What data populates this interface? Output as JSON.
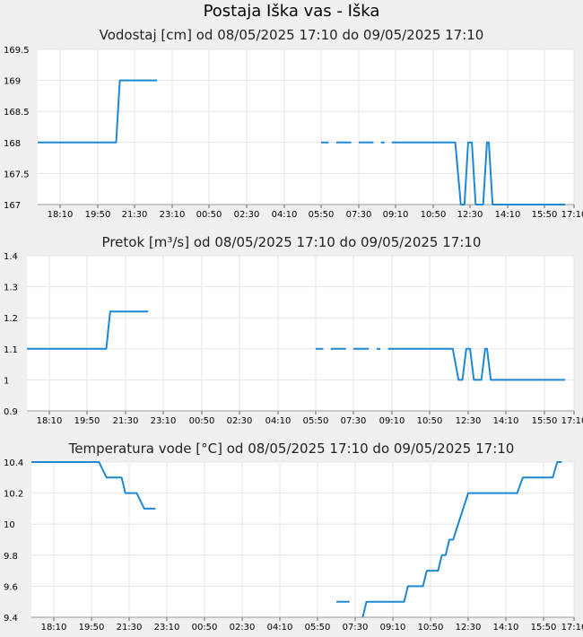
{
  "page": {
    "title": "Postaja Iška vas - Iška"
  },
  "chart_data": [
    {
      "type": "line",
      "title": "Vodostaj [cm] od 08/05/2025 17:10 do 09/05/2025 17:10",
      "xlabels": [
        "18:10",
        "19:50",
        "21:30",
        "23:10",
        "00:50",
        "02:30",
        "04:10",
        "05:50",
        "07:30",
        "09:10",
        "10:50",
        "12:30",
        "14:10",
        "15:50",
        "17:10"
      ],
      "ylabels": [
        "169.5",
        "169",
        "168.5",
        "168",
        "167.5",
        "167"
      ],
      "ylim": [
        167,
        169.5
      ],
      "color": "#1e88d4",
      "series": [
        {
          "segments": [
            [
              [
                0,
                168
              ],
              [
                1.5,
                168
              ],
              [
                1.6,
                169
              ],
              [
                2.6,
                169
              ]
            ],
            [
              [
                7.0,
                168
              ],
              [
                7.2,
                168
              ]
            ],
            [
              [
                7.4,
                168
              ],
              [
                7.8,
                168
              ]
            ],
            [
              [
                8.0,
                168
              ],
              [
                8.4,
                168
              ]
            ],
            [
              [
                8.6,
                168
              ],
              [
                8.7,
                168
              ]
            ],
            [
              [
                8.9,
                168
              ],
              [
                10.6,
                168
              ],
              [
                10.75,
                167
              ],
              [
                10.85,
                167
              ],
              [
                10.95,
                168
              ],
              [
                11.05,
                168
              ],
              [
                11.15,
                167
              ],
              [
                11.35,
                167
              ],
              [
                11.45,
                168
              ],
              [
                11.5,
                168
              ],
              [
                11.6,
                167
              ],
              [
                13.7,
                167
              ]
            ]
          ]
        }
      ]
    },
    {
      "type": "line",
      "title": "Pretok [m³/s] od 08/05/2025 17:10 do 09/05/2025 17:10",
      "xlabels": [
        "18:10",
        "19:50",
        "21:30",
        "23:10",
        "00:50",
        "02:30",
        "04:10",
        "05:50",
        "07:30",
        "09:10",
        "10:50",
        "12:30",
        "14:10",
        "15:50",
        "17:10"
      ],
      "ylabels": [
        "1.4",
        "1.3",
        "1.2",
        "1.1",
        "1",
        "0.9"
      ],
      "ylim": [
        0.9,
        1.4
      ],
      "color": "#1e88d4",
      "series": [
        {
          "segments": [
            [
              [
                0,
                1.1
              ],
              [
                1.5,
                1.1
              ],
              [
                1.6,
                1.22
              ],
              [
                2.6,
                1.22
              ]
            ],
            [
              [
                7.0,
                1.1
              ],
              [
                7.2,
                1.1
              ]
            ],
            [
              [
                7.4,
                1.1
              ],
              [
                7.8,
                1.1
              ]
            ],
            [
              [
                8.0,
                1.1
              ],
              [
                8.4,
                1.1
              ]
            ],
            [
              [
                8.6,
                1.1
              ],
              [
                8.7,
                1.1
              ]
            ],
            [
              [
                8.9,
                1.1
              ],
              [
                10.6,
                1.1
              ],
              [
                10.75,
                1.0
              ],
              [
                10.85,
                1.0
              ],
              [
                10.95,
                1.1
              ],
              [
                11.05,
                1.1
              ],
              [
                11.15,
                1.0
              ],
              [
                11.35,
                1.0
              ],
              [
                11.45,
                1.1
              ],
              [
                11.5,
                1.1
              ],
              [
                11.6,
                1.0
              ],
              [
                13.7,
                1.0
              ]
            ]
          ]
        }
      ]
    },
    {
      "type": "line",
      "title": "Temperatura vode [°C] od 08/05/2025 17:10 do 09/05/2025 17:10",
      "xlabels": [
        "18:10",
        "19:50",
        "21:30",
        "23:10",
        "00:50",
        "02:30",
        "04:10",
        "05:50",
        "07:30",
        "09:10",
        "10:50",
        "12:30",
        "14:10",
        "15:50",
        "17:10"
      ],
      "ylabels": [
        "10.4",
        "10.2",
        "10",
        "9.8",
        "9.6",
        "9.4"
      ],
      "ylim": [
        9.4,
        10.4
      ],
      "color": "#1e88d4",
      "series": [
        {
          "segments": [
            [
              [
                0,
                10.4
              ],
              [
                1.2,
                10.4
              ],
              [
                1.4,
                10.3
              ],
              [
                1.8,
                10.3
              ],
              [
                1.9,
                10.2
              ],
              [
                2.2,
                10.2
              ],
              [
                2.4,
                10.1
              ],
              [
                2.7,
                10.1
              ]
            ],
            [
              [
                7.5,
                9.5
              ],
              [
                7.85,
                9.5
              ]
            ],
            [
              [
                8.2,
                9.4
              ],
              [
                8.3,
                9.5
              ],
              [
                9.3,
                9.5
              ],
              [
                9.4,
                9.6
              ],
              [
                9.8,
                9.6
              ],
              [
                9.9,
                9.7
              ],
              [
                10.2,
                9.7
              ],
              [
                10.3,
                9.8
              ],
              [
                10.4,
                9.8
              ],
              [
                10.5,
                9.9
              ],
              [
                10.6,
                9.9
              ],
              [
                11.0,
                10.2
              ],
              [
                12.3,
                10.2
              ],
              [
                12.45,
                10.3
              ],
              [
                13.3,
                10.3
              ],
              [
                13.45,
                10.4
              ],
              [
                13.6,
                10.4
              ]
            ]
          ]
        }
      ]
    }
  ]
}
